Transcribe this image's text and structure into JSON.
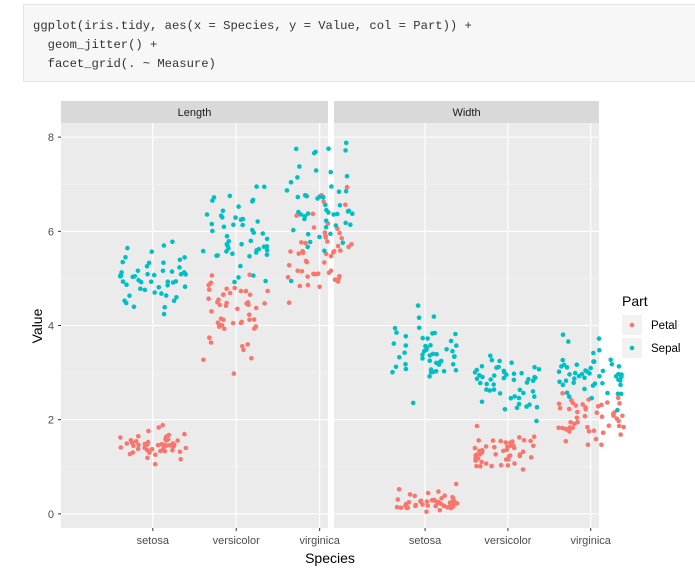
{
  "code": {
    "lines": [
      "ggplot(iris.tidy, aes(x = Species, y = Value, col = Part)) +",
      "  geom_jitter() +",
      "  facet_grid(. ~ Measure)"
    ]
  },
  "chart_data": {
    "type": "scatter",
    "jitter": true,
    "xlabel": "Species",
    "ylabel": "Value",
    "categories": [
      "setosa",
      "versicolor",
      "virginica"
    ],
    "ylim": [
      -0.3,
      8.3
    ],
    "yticks": [
      0,
      2,
      4,
      6,
      8
    ],
    "grid": true,
    "legend": {
      "title": "Part",
      "position": "right",
      "entries": [
        {
          "label": "Petal",
          "color": "#F8766D"
        },
        {
          "label": "Sepal",
          "color": "#00BFC4"
        }
      ]
    },
    "facets": [
      {
        "label": "Length",
        "series": [
          {
            "name": "Petal",
            "color": "#F8766D",
            "groups": [
              {
                "category": "setosa",
                "values": [
                  1.4,
                  1.4,
                  1.3,
                  1.5,
                  1.4,
                  1.7,
                  1.4,
                  1.5,
                  1.4,
                  1.5,
                  1.5,
                  1.6,
                  1.4,
                  1.1,
                  1.2,
                  1.5,
                  1.3,
                  1.4,
                  1.7,
                  1.5,
                  1.7,
                  1.5,
                  1.0,
                  1.7,
                  1.9,
                  1.6,
                  1.6,
                  1.5,
                  1.4,
                  1.6,
                  1.6,
                  1.5,
                  1.5,
                  1.4,
                  1.5,
                  1.2,
                  1.3,
                  1.4,
                  1.3,
                  1.5,
                  1.3,
                  1.3,
                  1.3,
                  1.6,
                  1.9,
                  1.4,
                  1.6,
                  1.4,
                  1.5,
                  1.4
                ]
              },
              {
                "category": "versicolor",
                "values": [
                  4.7,
                  4.5,
                  4.9,
                  4.0,
                  4.6,
                  4.5,
                  4.7,
                  3.3,
                  4.6,
                  3.9,
                  3.5,
                  4.2,
                  4.0,
                  4.7,
                  3.6,
                  4.4,
                  4.5,
                  4.1,
                  4.5,
                  3.9,
                  4.8,
                  4.0,
                  4.9,
                  4.7,
                  4.3,
                  4.4,
                  4.8,
                  5.0,
                  4.5,
                  3.5,
                  3.8,
                  3.7,
                  3.9,
                  5.1,
                  4.5,
                  4.5,
                  4.7,
                  4.4,
                  4.1,
                  4.0,
                  4.4,
                  4.6,
                  4.0,
                  3.3,
                  4.2,
                  4.2,
                  4.2,
                  4.3,
                  3.0,
                  4.1
                ]
              },
              {
                "category": "virginica",
                "values": [
                  6.0,
                  5.1,
                  5.9,
                  5.6,
                  5.8,
                  6.6,
                  4.5,
                  6.3,
                  5.8,
                  6.1,
                  5.1,
                  5.3,
                  5.5,
                  5.0,
                  5.1,
                  5.3,
                  5.5,
                  6.7,
                  6.9,
                  5.0,
                  5.7,
                  4.9,
                  6.7,
                  4.9,
                  5.7,
                  6.0,
                  4.8,
                  4.9,
                  5.6,
                  5.8,
                  6.1,
                  6.4,
                  5.6,
                  5.1,
                  5.6,
                  6.1,
                  5.6,
                  5.5,
                  4.8,
                  5.4,
                  5.6,
                  5.1,
                  5.1,
                  5.9,
                  5.7,
                  5.2,
                  5.0,
                  5.2,
                  5.4,
                  5.1
                ]
              }
            ]
          },
          {
            "name": "Sepal",
            "color": "#00BFC4",
            "groups": [
              {
                "category": "setosa",
                "values": [
                  5.1,
                  4.9,
                  4.7,
                  4.6,
                  5.0,
                  5.4,
                  4.6,
                  5.0,
                  4.4,
                  4.9,
                  5.4,
                  4.8,
                  4.8,
                  4.3,
                  5.8,
                  5.7,
                  5.4,
                  5.1,
                  5.7,
                  5.1,
                  5.4,
                  5.1,
                  4.6,
                  5.1,
                  4.8,
                  5.0,
                  5.0,
                  5.2,
                  5.2,
                  4.7,
                  4.8,
                  5.4,
                  5.2,
                  5.5,
                  4.9,
                  5.0,
                  5.5,
                  4.9,
                  4.4,
                  5.1,
                  5.0,
                  4.5,
                  4.4,
                  5.0,
                  5.1,
                  4.8,
                  5.1,
                  4.6,
                  5.3,
                  5.0
                ]
              },
              {
                "category": "versicolor",
                "values": [
                  7.0,
                  6.4,
                  6.9,
                  5.5,
                  6.5,
                  5.7,
                  6.3,
                  4.9,
                  6.6,
                  5.2,
                  5.0,
                  5.9,
                  6.0,
                  6.1,
                  5.6,
                  6.7,
                  5.6,
                  5.8,
                  6.2,
                  5.6,
                  5.9,
                  6.1,
                  6.3,
                  6.1,
                  6.4,
                  6.6,
                  6.8,
                  6.7,
                  6.0,
                  5.7,
                  5.5,
                  5.5,
                  5.8,
                  6.0,
                  5.4,
                  6.0,
                  6.7,
                  6.3,
                  5.6,
                  5.5,
                  5.5,
                  6.1,
                  5.8,
                  5.0,
                  5.6,
                  5.7,
                  5.7,
                  6.2,
                  5.1,
                  5.7
                ]
              },
              {
                "category": "virginica",
                "values": [
                  6.3,
                  5.8,
                  7.1,
                  6.3,
                  6.5,
                  7.6,
                  4.9,
                  7.3,
                  6.7,
                  7.2,
                  6.5,
                  6.4,
                  6.8,
                  5.7,
                  5.8,
                  6.4,
                  6.5,
                  7.7,
                  7.7,
                  6.0,
                  6.9,
                  5.6,
                  7.7,
                  6.3,
                  6.7,
                  7.2,
                  6.2,
                  6.1,
                  6.4,
                  7.2,
                  7.4,
                  7.9,
                  6.4,
                  6.3,
                  6.1,
                  7.7,
                  6.3,
                  6.4,
                  6.0,
                  6.9,
                  6.7,
                  6.9,
                  5.8,
                  6.8,
                  6.7,
                  6.7,
                  6.3,
                  6.5,
                  6.2,
                  5.9
                ]
              }
            ]
          }
        ]
      },
      {
        "label": "Width",
        "series": [
          {
            "name": "Petal",
            "color": "#F8766D",
            "groups": [
              {
                "category": "setosa",
                "values": [
                  0.2,
                  0.2,
                  0.2,
                  0.2,
                  0.2,
                  0.4,
                  0.3,
                  0.2,
                  0.2,
                  0.1,
                  0.2,
                  0.2,
                  0.1,
                  0.1,
                  0.2,
                  0.4,
                  0.4,
                  0.3,
                  0.3,
                  0.3,
                  0.2,
                  0.4,
                  0.2,
                  0.5,
                  0.2,
                  0.2,
                  0.4,
                  0.2,
                  0.2,
                  0.2,
                  0.2,
                  0.4,
                  0.1,
                  0.2,
                  0.2,
                  0.2,
                  0.2,
                  0.1,
                  0.2,
                  0.2,
                  0.3,
                  0.3,
                  0.2,
                  0.6,
                  0.4,
                  0.3,
                  0.2,
                  0.2,
                  0.2,
                  0.2
                ]
              },
              {
                "category": "versicolor",
                "values": [
                  1.4,
                  1.5,
                  1.5,
                  1.3,
                  1.5,
                  1.3,
                  1.6,
                  1.0,
                  1.3,
                  1.4,
                  1.0,
                  1.5,
                  1.0,
                  1.4,
                  1.3,
                  1.4,
                  1.5,
                  1.0,
                  1.5,
                  1.1,
                  1.8,
                  1.3,
                  1.5,
                  1.2,
                  1.3,
                  1.4,
                  1.4,
                  1.7,
                  1.5,
                  1.0,
                  1.1,
                  1.0,
                  1.2,
                  1.6,
                  1.5,
                  1.6,
                  1.5,
                  1.3,
                  1.3,
                  1.3,
                  1.2,
                  1.4,
                  1.2,
                  1.0,
                  1.3,
                  1.2,
                  1.3,
                  1.3,
                  1.1,
                  1.3
                ]
              },
              {
                "category": "virginica",
                "values": [
                  2.5,
                  1.9,
                  2.1,
                  1.8,
                  2.2,
                  2.1,
                  1.7,
                  1.8,
                  1.8,
                  2.5,
                  2.0,
                  1.9,
                  2.1,
                  2.0,
                  2.4,
                  2.3,
                  1.8,
                  2.2,
                  2.3,
                  1.5,
                  2.3,
                  2.0,
                  2.0,
                  1.8,
                  2.1,
                  1.8,
                  1.8,
                  1.8,
                  2.1,
                  1.6,
                  1.9,
                  2.0,
                  2.2,
                  1.5,
                  1.4,
                  2.3,
                  2.4,
                  1.8,
                  1.8,
                  2.1,
                  2.4,
                  2.3,
                  1.9,
                  2.3,
                  2.5,
                  2.3,
                  1.9,
                  2.0,
                  2.3,
                  1.8
                ]
              }
            ]
          },
          {
            "name": "Sepal",
            "color": "#00BFC4",
            "groups": [
              {
                "category": "setosa",
                "values": [
                  3.5,
                  3.0,
                  3.2,
                  3.1,
                  3.6,
                  3.9,
                  3.4,
                  3.4,
                  2.9,
                  3.1,
                  3.7,
                  3.4,
                  3.0,
                  3.0,
                  4.0,
                  4.4,
                  3.9,
                  3.5,
                  3.8,
                  3.8,
                  3.4,
                  3.7,
                  3.6,
                  3.3,
                  3.4,
                  3.0,
                  3.4,
                  3.5,
                  3.4,
                  3.2,
                  3.1,
                  3.4,
                  4.1,
                  4.2,
                  3.1,
                  3.2,
                  3.5,
                  3.6,
                  3.0,
                  3.4,
                  3.5,
                  2.3,
                  3.2,
                  3.5,
                  3.8,
                  3.0,
                  3.8,
                  3.2,
                  3.7,
                  3.3
                ]
              },
              {
                "category": "versicolor",
                "values": [
                  3.2,
                  3.2,
                  3.1,
                  2.3,
                  2.8,
                  2.8,
                  3.3,
                  2.4,
                  2.9,
                  2.7,
                  2.0,
                  3.0,
                  2.2,
                  2.9,
                  2.9,
                  3.1,
                  3.0,
                  2.7,
                  2.2,
                  2.5,
                  3.2,
                  2.8,
                  2.5,
                  2.8,
                  2.9,
                  3.0,
                  2.8,
                  3.0,
                  2.9,
                  2.6,
                  2.4,
                  2.4,
                  2.7,
                  2.7,
                  3.0,
                  3.4,
                  3.1,
                  2.3,
                  3.0,
                  2.5,
                  2.6,
                  3.0,
                  2.6,
                  2.3,
                  2.7,
                  3.0,
                  2.9,
                  2.9,
                  2.5,
                  2.8
                ]
              },
              {
                "category": "virginica",
                "values": [
                  3.3,
                  2.7,
                  3.0,
                  2.9,
                  3.0,
                  3.0,
                  2.5,
                  2.9,
                  2.5,
                  3.6,
                  3.2,
                  2.7,
                  3.0,
                  2.5,
                  2.8,
                  3.2,
                  3.0,
                  3.8,
                  2.6,
                  2.2,
                  3.2,
                  2.8,
                  2.8,
                  2.7,
                  3.3,
                  3.2,
                  2.8,
                  3.0,
                  2.8,
                  3.0,
                  2.8,
                  3.8,
                  2.8,
                  2.8,
                  2.6,
                  3.0,
                  3.4,
                  3.1,
                  3.0,
                  3.1,
                  3.1,
                  3.1,
                  2.7,
                  3.2,
                  3.3,
                  3.0,
                  2.5,
                  3.0,
                  3.4,
                  3.0
                ]
              }
            ]
          }
        ]
      }
    ]
  }
}
